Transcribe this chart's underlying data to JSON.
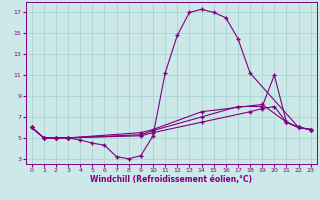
{
  "xlabel": "Windchill (Refroidissement éolien,°C)",
  "background_color": "#cce8e8",
  "grid_color": "#aad4d4",
  "line_color": "#800080",
  "xlim": [
    -0.5,
    23.5
  ],
  "ylim": [
    2.5,
    18.0
  ],
  "xticks": [
    0,
    1,
    2,
    3,
    4,
    5,
    6,
    7,
    8,
    9,
    10,
    11,
    12,
    13,
    14,
    15,
    16,
    17,
    18,
    19,
    20,
    21,
    22,
    23
  ],
  "yticks": [
    3,
    5,
    7,
    9,
    11,
    13,
    15,
    17
  ],
  "line1_x": [
    0,
    1,
    2,
    3,
    4,
    5,
    6,
    7,
    8,
    9,
    10,
    11,
    12,
    13,
    14,
    15,
    16,
    17,
    18,
    22,
    23
  ],
  "line1_y": [
    6.0,
    5.0,
    5.0,
    5.0,
    4.8,
    4.5,
    4.3,
    3.2,
    3.0,
    3.3,
    5.2,
    11.2,
    14.8,
    17.0,
    17.3,
    17.0,
    16.5,
    14.5,
    11.2,
    6.0,
    5.8
  ],
  "line2_x": [
    0,
    1,
    2,
    3,
    9,
    10,
    14,
    19,
    21,
    22,
    23
  ],
  "line2_y": [
    6.0,
    5.0,
    5.0,
    5.0,
    5.5,
    5.8,
    7.5,
    8.2,
    6.5,
    6.0,
    5.8
  ],
  "line3_x": [
    0,
    1,
    2,
    3,
    9,
    10,
    14,
    17,
    19,
    20,
    21,
    22,
    23
  ],
  "line3_y": [
    6.0,
    5.0,
    5.0,
    5.0,
    5.3,
    5.7,
    7.0,
    8.0,
    8.0,
    11.0,
    6.5,
    6.0,
    5.8
  ],
  "line4_x": [
    0,
    1,
    2,
    3,
    9,
    10,
    14,
    18,
    19,
    20,
    21,
    22,
    23
  ],
  "line4_y": [
    6.0,
    5.0,
    5.0,
    5.0,
    5.2,
    5.5,
    6.5,
    7.5,
    7.8,
    8.0,
    6.5,
    6.0,
    5.8
  ]
}
